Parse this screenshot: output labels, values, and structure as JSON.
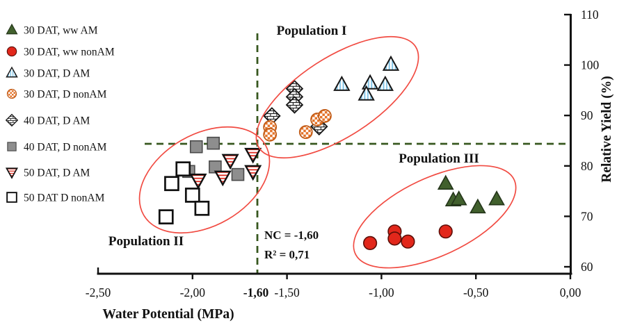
{
  "chart_data": {
    "type": "scatter",
    "title": "",
    "xlabel": "Water Potential (MPa)",
    "ylabel": "Relative Yield (%)",
    "xlim": [
      -2.5,
      0.0
    ],
    "ylim": [
      60,
      110
    ],
    "grid": false,
    "legend_position": "top-left",
    "x_ticks": [
      {
        "label": "-2,50",
        "value": -2.5
      },
      {
        "label": "-2,00",
        "value": -2.0
      },
      {
        "label": "-1,50",
        "value": -1.5
      },
      {
        "label": "-1,00",
        "value": -1.0
      },
      {
        "label": "-0,50",
        "value": -0.5
      },
      {
        "label": "0,00",
        "value": 0.0
      }
    ],
    "y_ticks": [
      {
        "label": "110",
        "value": 110
      },
      {
        "label": "100",
        "value": 100
      },
      {
        "label": "90",
        "value": 90
      },
      {
        "label": "80",
        "value": 80
      },
      {
        "label": "70",
        "value": 70
      },
      {
        "label": "60",
        "value": 60
      }
    ],
    "reference_lines": {
      "vertical_water_potential": -1.6,
      "vertical_label": "-1,60",
      "horizontal_yield_pct": 85
    },
    "annotations": {
      "nc": "NC = -1,60",
      "r2": "R² = 0,71"
    },
    "populations": [
      {
        "label": "Population I"
      },
      {
        "label": "Population II"
      },
      {
        "label": "Population III"
      }
    ],
    "colors": {
      "green": "#41602d",
      "red": "#e2271b",
      "blue_stripe": "#7fc3e6",
      "orange_checker": "#e4742b",
      "gray": "#8e8e8e",
      "dashed_line": "#37571f",
      "ellipse": "#f14b42",
      "axis": "#111111"
    },
    "legend": [
      {
        "label": "30 DAT, ww AM",
        "marker": "triangle-green"
      },
      {
        "label": "30 DAT, ww nonAM",
        "marker": "circle-red"
      },
      {
        "label": "30 DAT, D AM",
        "marker": "triangle-bluestripe"
      },
      {
        "label": "30 DAT, D nonAM",
        "marker": "circle-orangechecker"
      },
      {
        "label": "40 DAT, D AM",
        "marker": "diamond-brick"
      },
      {
        "label": "40 DAT, D nonAM",
        "marker": "square-gray"
      },
      {
        "label": "50 DAT, D AM",
        "marker": "triangledown-redstripe"
      },
      {
        "label": "50 DAT D nonAM",
        "marker": "square-open"
      }
    ],
    "series": [
      {
        "name": "30 DAT, ww AM",
        "marker": "triangle-green",
        "points": [
          [
            -0.66,
            76.5
          ],
          [
            -0.62,
            73.2
          ],
          [
            -0.59,
            73.4
          ],
          [
            -0.49,
            71.8
          ],
          [
            -0.39,
            73.4
          ]
        ]
      },
      {
        "name": "30 DAT, ww nonAM",
        "marker": "circle-red",
        "points": [
          [
            -1.06,
            64.7
          ],
          [
            -0.93,
            67.0
          ],
          [
            -0.93,
            65.6
          ],
          [
            -0.86,
            65.0
          ],
          [
            -0.66,
            67.0
          ]
        ]
      },
      {
        "name": "30 DAT, D AM",
        "marker": "triangle-bluestripe",
        "points": [
          [
            -0.95,
            100.1
          ],
          [
            -1.21,
            96.1
          ],
          [
            -1.06,
            96.4
          ],
          [
            -0.98,
            96.1
          ],
          [
            -1.08,
            94.2
          ]
        ]
      },
      {
        "name": "30 DAT, D nonAM",
        "marker": "circle-orangechecker",
        "points": [
          [
            -1.59,
            87.7
          ],
          [
            -1.59,
            86.2
          ],
          [
            -1.4,
            86.7
          ],
          [
            -1.34,
            89.2
          ],
          [
            -1.3,
            89.9
          ]
        ]
      },
      {
        "name": "40 DAT, D AM",
        "marker": "diamond-brick",
        "points": [
          [
            -1.46,
            95.3
          ],
          [
            -1.46,
            93.7
          ],
          [
            -1.46,
            92.1
          ],
          [
            -1.58,
            89.9
          ],
          [
            -1.33,
            87.8
          ]
        ]
      },
      {
        "name": "40 DAT, D nonAM",
        "marker": "square-gray",
        "points": [
          [
            -1.98,
            83.8
          ],
          [
            -1.89,
            84.5
          ],
          [
            -2.02,
            78.9
          ],
          [
            -1.88,
            79.8
          ],
          [
            -1.76,
            78.3
          ]
        ]
      },
      {
        "name": "50 DAT, D AM",
        "marker": "triangledown-redstripe",
        "points": [
          [
            -1.68,
            82.3
          ],
          [
            -1.68,
            78.9
          ],
          [
            -1.8,
            81.1
          ],
          [
            -1.84,
            77.8
          ],
          [
            -1.97,
            77.2
          ]
        ]
      },
      {
        "name": "50 DAT D nonAM",
        "marker": "square-open",
        "points": [
          [
            -2.05,
            79.4
          ],
          [
            -2.11,
            76.5
          ],
          [
            -2.0,
            74.2
          ],
          [
            -1.95,
            71.6
          ],
          [
            -2.14,
            69.9
          ]
        ]
      }
    ]
  }
}
